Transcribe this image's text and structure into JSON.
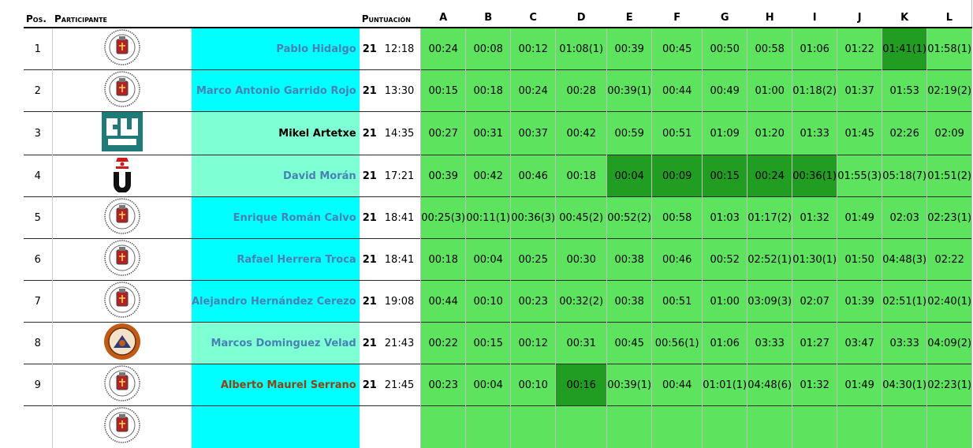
{
  "headers": {
    "pos": "Pos.",
    "participant": "Participante",
    "score": "Puntuación",
    "problems": [
      "A",
      "B",
      "C",
      "D",
      "E",
      "F",
      "G",
      "H",
      "I",
      "J",
      "K",
      "L"
    ]
  },
  "colors": {
    "solved": "#5de35d",
    "first_solve": "#219e21",
    "name_cyan": "#00ffff",
    "name_mint": "#7fffd4"
  },
  "rows": [
    {
      "pos": "1",
      "logo": "ucm-seal-icon",
      "name": "Pablo Hidalgo",
      "name_bg": "cyan",
      "name_color": "blue",
      "solved": "21",
      "time": "12:18",
      "cells": [
        "00:24",
        "00:08",
        "00:12",
        "01:08(1)",
        "00:39",
        "00:45",
        "00:50",
        "00:58",
        "01:06",
        "01:22",
        "01:41(1)",
        "01:58(1)"
      ],
      "first": [
        false,
        false,
        false,
        false,
        false,
        false,
        false,
        false,
        false,
        false,
        true,
        false
      ]
    },
    {
      "pos": "2",
      "logo": "ucm-seal-icon",
      "name": "Marco Antonio Garrido Rojo",
      "name_bg": "cyan",
      "name_color": "blue",
      "solved": "21",
      "time": "13:30",
      "cells": [
        "00:15",
        "00:18",
        "00:24",
        "00:28",
        "00:39(1)",
        "00:44",
        "00:49",
        "01:00",
        "01:18(2)",
        "01:37",
        "01:53",
        "02:19(2)"
      ],
      "first": [
        false,
        false,
        false,
        false,
        false,
        false,
        false,
        false,
        false,
        false,
        false,
        false
      ]
    },
    {
      "pos": "3",
      "logo": "ehu-logo-icon",
      "name": "Mikel Artetxe",
      "name_bg": "mint",
      "name_color": "black",
      "solved": "21",
      "time": "14:35",
      "cells": [
        "00:27",
        "00:31",
        "00:37",
        "00:42",
        "00:59",
        "00:51",
        "01:09",
        "01:20",
        "01:33",
        "01:45",
        "02:26",
        "02:09"
      ],
      "first": [
        false,
        false,
        false,
        false,
        false,
        false,
        false,
        false,
        false,
        false,
        false,
        false
      ]
    },
    {
      "pos": "4",
      "logo": "uned-logo-icon",
      "name": "David Morán",
      "name_bg": "mint",
      "name_color": "blue",
      "solved": "21",
      "time": "17:21",
      "cells": [
        "00:39",
        "00:42",
        "00:46",
        "00:18",
        "00:04",
        "00:09",
        "00:15",
        "00:24",
        "00:36(1)",
        "01:55(3)",
        "05:18(7)",
        "01:51(2)"
      ],
      "first": [
        false,
        false,
        false,
        false,
        true,
        true,
        true,
        true,
        true,
        false,
        false,
        false
      ]
    },
    {
      "pos": "5",
      "logo": "ucm-seal-icon",
      "name": "Enrique Román Calvo",
      "name_bg": "cyan",
      "name_color": "blue",
      "solved": "21",
      "time": "18:41",
      "cells": [
        "00:25(3)",
        "00:11(1)",
        "00:36(3)",
        "00:45(2)",
        "00:52(2)",
        "00:58",
        "01:03",
        "01:17(2)",
        "01:32",
        "01:49",
        "02:03",
        "02:23(1)"
      ],
      "first": [
        false,
        false,
        false,
        false,
        false,
        false,
        false,
        false,
        false,
        false,
        false,
        false
      ]
    },
    {
      "pos": "6",
      "logo": "ucm-seal-icon",
      "name": "Rafael Herrera Troca",
      "name_bg": "cyan",
      "name_color": "blue",
      "solved": "21",
      "time": "18:41",
      "cells": [
        "00:18",
        "00:04",
        "00:25",
        "00:30",
        "00:38",
        "00:46",
        "00:52",
        "02:52(1)",
        "01:30(1)",
        "01:50",
        "04:48(3)",
        "02:22"
      ],
      "first": [
        false,
        false,
        false,
        false,
        false,
        false,
        false,
        false,
        false,
        false,
        false,
        false
      ]
    },
    {
      "pos": "7",
      "logo": "ucm-seal-icon",
      "name": "Alejandro Hernández Cerezo",
      "name_bg": "cyan",
      "name_color": "blue",
      "solved": "21",
      "time": "19:08",
      "cells": [
        "00:44",
        "00:10",
        "00:23",
        "00:32(2)",
        "00:38",
        "00:51",
        "01:00",
        "03:09(3)",
        "02:07",
        "01:39",
        "02:51(1)",
        "02:40(1)"
      ],
      "first": [
        false,
        false,
        false,
        false,
        false,
        false,
        false,
        false,
        false,
        false,
        false,
        false
      ]
    },
    {
      "pos": "8",
      "logo": "murcia-seal-icon",
      "name": "Marcos Dominguez Velad",
      "name_bg": "mint",
      "name_color": "blue",
      "solved": "21",
      "time": "21:43",
      "cells": [
        "00:22",
        "00:15",
        "00:12",
        "00:31",
        "00:45",
        "00:56(1)",
        "01:06",
        "03:33",
        "01:27",
        "03:47",
        "03:33",
        "04:09(2)"
      ],
      "first": [
        false,
        false,
        false,
        false,
        false,
        false,
        false,
        false,
        false,
        false,
        false,
        false
      ]
    },
    {
      "pos": "9",
      "logo": "ucm-seal-icon",
      "name": "Alberto Maurel Serrano",
      "name_bg": "cyan",
      "name_color": "brown",
      "solved": "21",
      "time": "21:45",
      "cells": [
        "00:23",
        "00:04",
        "00:10",
        "00:16",
        "00:39(1)",
        "00:44",
        "01:01(1)",
        "04:48(6)",
        "01:32",
        "01:49",
        "04:30(1)",
        "02:23(1)"
      ],
      "first": [
        false,
        false,
        false,
        true,
        false,
        false,
        false,
        false,
        false,
        false,
        false,
        false
      ]
    },
    {
      "pos": "",
      "logo": "ucm-seal-icon",
      "name": "",
      "name_bg": "cyan",
      "name_color": "blue",
      "solved": "",
      "time": "",
      "cells": [
        "",
        "",
        "",
        "",
        "",
        "",
        "",
        "",
        "",
        "",
        "",
        ""
      ],
      "first": [
        false,
        false,
        false,
        false,
        false,
        false,
        false,
        false,
        false,
        false,
        false,
        false
      ]
    }
  ]
}
